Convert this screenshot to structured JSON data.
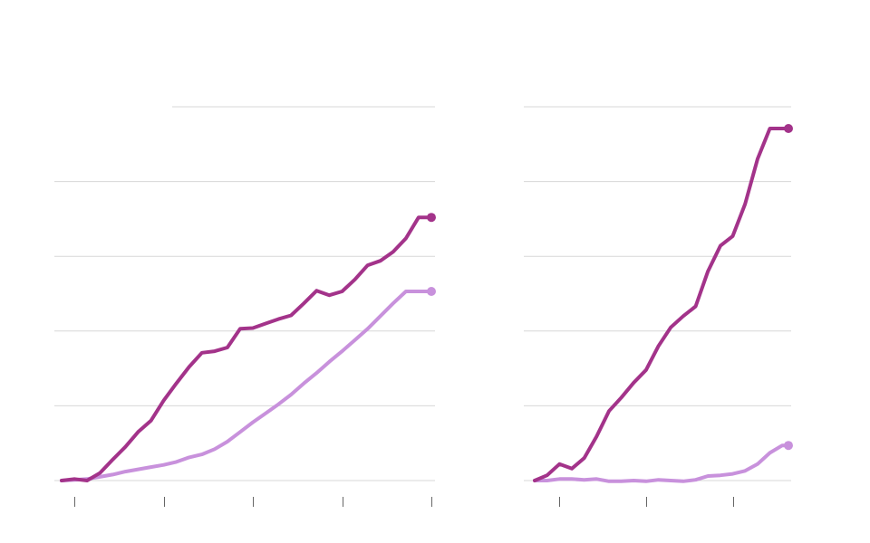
{
  "colors": {
    "dark_series": "#a3338a",
    "light_series": "#c891dc",
    "gridline": "#d7d7d7",
    "tick": "#666666"
  },
  "chart_data": [
    {
      "type": "line",
      "title": "",
      "xlabel": "",
      "ylabel": "",
      "xlim": [
        0,
        29
      ],
      "ylim": [
        0,
        5
      ],
      "x_ticks": [
        1,
        8,
        15,
        22,
        29
      ],
      "y_gridlines": [
        0,
        1,
        2,
        3,
        4,
        5
      ],
      "grid": true,
      "legend": "none",
      "x": [
        0,
        1,
        2,
        3,
        4,
        5,
        6,
        7,
        8,
        9,
        10,
        11,
        12,
        13,
        14,
        15,
        16,
        17,
        18,
        19,
        20,
        21,
        22,
        23,
        24,
        25,
        26,
        27,
        28,
        29
      ],
      "series": [
        {
          "color": "#a3338a",
          "end_marker": true,
          "values": [
            0.0,
            0.02,
            0.0,
            0.1,
            0.28,
            0.45,
            0.65,
            0.8,
            1.07,
            1.3,
            1.52,
            1.71,
            1.73,
            1.78,
            2.03,
            2.04,
            2.1,
            2.16,
            2.21,
            2.37,
            2.54,
            2.48,
            2.53,
            2.69,
            2.88,
            2.94,
            3.06,
            3.24,
            3.52,
            3.52
          ]
        },
        {
          "color": "#c891dc",
          "end_marker": true,
          "values": [
            0.0,
            0.01,
            0.02,
            0.05,
            0.08,
            0.12,
            0.15,
            0.18,
            0.21,
            0.25,
            0.31,
            0.35,
            0.42,
            0.52,
            0.65,
            0.78,
            0.9,
            1.02,
            1.15,
            1.3,
            1.44,
            1.59,
            1.73,
            1.88,
            2.03,
            2.2,
            2.37,
            2.53,
            2.53,
            2.53
          ]
        }
      ]
    },
    {
      "type": "line",
      "title": "",
      "xlabel": "",
      "ylabel": "",
      "xlim": [
        0,
        20.5
      ],
      "ylim": [
        0,
        5
      ],
      "x_ticks": [
        2,
        9,
        16
      ],
      "y_gridlines": [
        0,
        1,
        2,
        3,
        4,
        5
      ],
      "grid": true,
      "legend": "none",
      "x": [
        0,
        1,
        2,
        3,
        4,
        5,
        6,
        7,
        8,
        9,
        10,
        11,
        12,
        13,
        14,
        15,
        16,
        17,
        18,
        19,
        20,
        20.5
      ],
      "series": [
        {
          "color": "#a3338a",
          "end_marker": true,
          "values": [
            0.0,
            0.07,
            0.22,
            0.16,
            0.3,
            0.59,
            0.93,
            1.11,
            1.31,
            1.48,
            1.8,
            2.05,
            2.2,
            2.33,
            2.8,
            3.14,
            3.27,
            3.7,
            4.3,
            4.71,
            4.71,
            4.71
          ]
        },
        {
          "color": "#c891dc",
          "end_marker": true,
          "values": [
            0.0,
            0.0,
            0.02,
            0.02,
            0.01,
            0.02,
            -0.01,
            -0.01,
            0.0,
            -0.01,
            0.01,
            0.0,
            -0.01,
            0.01,
            0.06,
            0.07,
            0.09,
            0.13,
            0.22,
            0.37,
            0.47,
            0.47
          ]
        }
      ]
    }
  ]
}
